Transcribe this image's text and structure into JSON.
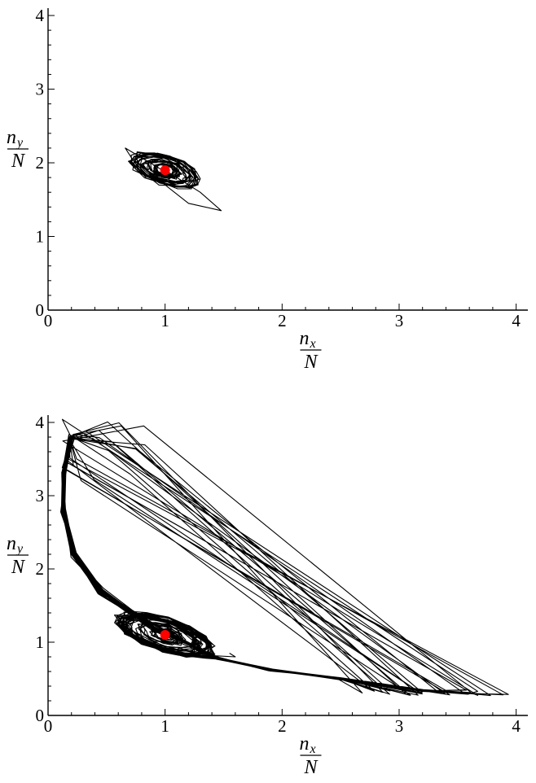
{
  "chart_data": [
    {
      "type": "line",
      "panel": "top",
      "title": "",
      "xlabel": {
        "numerator": "n",
        "subscript": "x",
        "denominator": "N"
      },
      "ylabel": {
        "numerator": "n",
        "subscript": "y",
        "denominator": "N"
      },
      "xlim": [
        0,
        4.1
      ],
      "ylim": [
        0,
        4.1
      ],
      "xticks": [
        "0",
        "1",
        "2",
        "3",
        "4"
      ],
      "yticks": [
        "0",
        "1",
        "2",
        "3",
        "4"
      ],
      "grid": false,
      "fixed_point": {
        "x": 1.0,
        "y": 1.9,
        "color": "#ff0000"
      },
      "trajectory_color": "#000000",
      "trajectory": {
        "kind": "noisy-spiral",
        "center": [
          1.0,
          1.9
        ],
        "rx_range": [
          0.08,
          0.33
        ],
        "ry_range": [
          0.06,
          0.18
        ],
        "rotation_deg": -35,
        "revolutions": 34
      }
    },
    {
      "type": "line",
      "panel": "bottom",
      "title": "",
      "xlabel": {
        "numerator": "n",
        "subscript": "x",
        "denominator": "N"
      },
      "ylabel": {
        "numerator": "n",
        "subscript": "y",
        "denominator": "N"
      },
      "xlim": [
        0,
        4.1
      ],
      "ylim": [
        0,
        4.1
      ],
      "xticks": [
        "0",
        "1",
        "2",
        "3",
        "4"
      ],
      "yticks": [
        "0",
        "1",
        "2",
        "3",
        "4"
      ],
      "grid": false,
      "fixed_point": {
        "x": 1.0,
        "y": 1.1,
        "color": "#ff0000"
      },
      "trajectory_color": "#000000",
      "trajectory": {
        "kind": "spiral-plus-relaxation-cycles",
        "center": [
          1.0,
          1.1
        ],
        "rx_range": [
          0.08,
          0.45
        ],
        "ry_range": [
          0.06,
          0.2
        ],
        "rotation_deg": -32,
        "revolutions": 30,
        "cycle_path": [
          [
            1.45,
            0.78
          ],
          [
            1.9,
            0.62
          ],
          [
            2.5,
            0.5
          ],
          [
            3.2,
            0.34
          ],
          [
            3.6,
            0.3
          ]
        ],
        "cycle_left_branch": [
          [
            0.9,
            1.2
          ],
          [
            0.45,
            1.7
          ],
          [
            0.22,
            2.2
          ],
          [
            0.13,
            2.8
          ],
          [
            0.14,
            3.3
          ],
          [
            0.2,
            3.8
          ]
        ],
        "cycle_top_end_x_range": [
          0.12,
          0.95
        ],
        "cycle_top_y_range": [
          3.2,
          4.05
        ],
        "cycle_far_x_range": [
          2.6,
          3.95
        ],
        "cycle_far_y_range": [
          0.27,
          0.35
        ],
        "cycles": 26
      }
    }
  ]
}
